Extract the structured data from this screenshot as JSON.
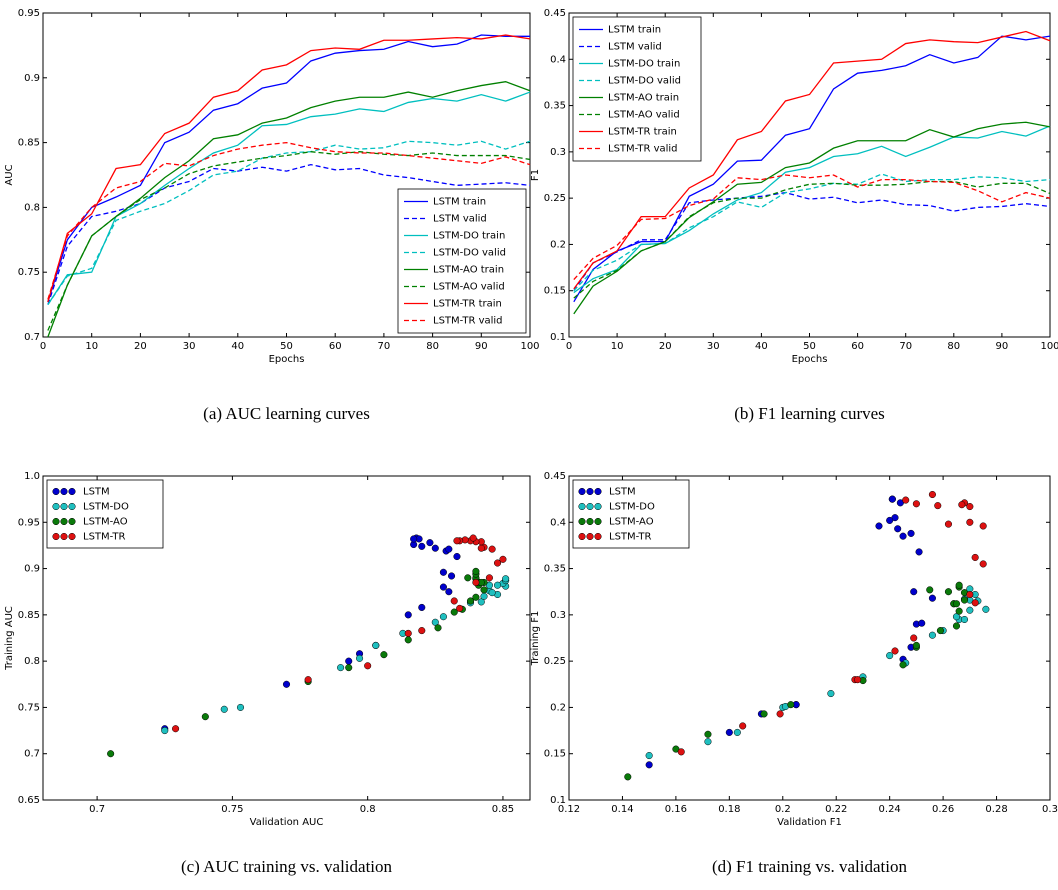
{
  "chart_data": [
    {
      "type": "line",
      "caption": "(a) AUC learning curves",
      "x_label": "Epochs",
      "y_label": "AUC",
      "x": [
        1,
        5,
        10,
        15,
        20,
        25,
        30,
        35,
        40,
        45,
        50,
        55,
        60,
        65,
        70,
        75,
        80,
        85,
        90,
        95,
        100
      ],
      "xlim": [
        0,
        100
      ],
      "xticks": [
        0,
        10,
        20,
        30,
        40,
        50,
        60,
        70,
        80,
        90,
        100
      ],
      "ylim": [
        0.7,
        0.95
      ],
      "yticks": [
        0.7,
        0.75,
        0.8,
        0.85,
        0.9,
        0.95
      ],
      "legend": "lower right",
      "series": [
        {
          "name": "LSTM train",
          "color": "#0000ff",
          "dashed": false,
          "values": [
            0.727,
            0.775,
            0.8,
            0.808,
            0.817,
            0.85,
            0.858,
            0.875,
            0.88,
            0.892,
            0.896,
            0.913,
            0.919,
            0.921,
            0.922,
            0.928,
            0.924,
            0.926,
            0.933,
            0.932,
            0.932
          ]
        },
        {
          "name": "LSTM valid",
          "color": "#0000ff",
          "dashed": true,
          "values": [
            0.725,
            0.77,
            0.793,
            0.797,
            0.803,
            0.815,
            0.82,
            0.83,
            0.828,
            0.831,
            0.828,
            0.833,
            0.829,
            0.83,
            0.825,
            0.823,
            0.82,
            0.817,
            0.818,
            0.819,
            0.817
          ]
        },
        {
          "name": "LSTM-DO train",
          "color": "#00bfbf",
          "dashed": false,
          "values": [
            0.725,
            0.748,
            0.75,
            0.793,
            0.803,
            0.817,
            0.83,
            0.842,
            0.848,
            0.863,
            0.864,
            0.87,
            0.872,
            0.876,
            0.874,
            0.881,
            0.884,
            0.882,
            0.887,
            0.882,
            0.889
          ]
        },
        {
          "name": "LSTM-DO valid",
          "color": "#00bfbf",
          "dashed": true,
          "values": [
            0.725,
            0.747,
            0.753,
            0.79,
            0.797,
            0.803,
            0.813,
            0.825,
            0.828,
            0.838,
            0.842,
            0.843,
            0.848,
            0.845,
            0.846,
            0.851,
            0.85,
            0.848,
            0.851,
            0.845,
            0.851
          ]
        },
        {
          "name": "LSTM-AO train",
          "color": "#008000",
          "dashed": false,
          "values": [
            0.7,
            0.74,
            0.778,
            0.793,
            0.807,
            0.823,
            0.836,
            0.853,
            0.856,
            0.865,
            0.869,
            0.877,
            0.882,
            0.885,
            0.885,
            0.889,
            0.885,
            0.89,
            0.894,
            0.897,
            0.89
          ]
        },
        {
          "name": "LSTM-AO valid",
          "color": "#008000",
          "dashed": true,
          "values": [
            0.705,
            0.74,
            0.778,
            0.793,
            0.806,
            0.815,
            0.826,
            0.832,
            0.835,
            0.838,
            0.84,
            0.843,
            0.841,
            0.843,
            0.841,
            0.84,
            0.842,
            0.84,
            0.84,
            0.84,
            0.837
          ]
        },
        {
          "name": "LSTM-TR train",
          "color": "#ff0000",
          "dashed": false,
          "values": [
            0.727,
            0.78,
            0.795,
            0.83,
            0.833,
            0.857,
            0.865,
            0.885,
            0.89,
            0.906,
            0.91,
            0.921,
            0.923,
            0.922,
            0.929,
            0.929,
            0.93,
            0.931,
            0.93,
            0.933,
            0.93
          ]
        },
        {
          "name": "LSTM-TR valid",
          "color": "#ff0000",
          "dashed": true,
          "values": [
            0.729,
            0.778,
            0.8,
            0.815,
            0.82,
            0.834,
            0.832,
            0.84,
            0.845,
            0.848,
            0.85,
            0.846,
            0.843,
            0.842,
            0.842,
            0.84,
            0.838,
            0.836,
            0.834,
            0.839,
            0.833
          ]
        }
      ]
    },
    {
      "type": "line",
      "caption": "(b) F1 learning curves",
      "x_label": "Epochs",
      "y_label": "F1",
      "x": [
        1,
        5,
        10,
        15,
        20,
        25,
        30,
        35,
        40,
        45,
        50,
        55,
        60,
        65,
        70,
        75,
        80,
        85,
        90,
        95,
        100
      ],
      "xlim": [
        0,
        100
      ],
      "xticks": [
        0,
        10,
        20,
        30,
        40,
        50,
        60,
        70,
        80,
        90,
        100
      ],
      "ylim": [
        0.1,
        0.45
      ],
      "yticks": [
        0.1,
        0.15,
        0.2,
        0.25,
        0.3,
        0.35,
        0.4,
        0.45
      ],
      "legend": "upper left",
      "series": [
        {
          "name": "LSTM train",
          "color": "#0000ff",
          "dashed": false,
          "values": [
            0.138,
            0.173,
            0.193,
            0.203,
            0.203,
            0.252,
            0.265,
            0.29,
            0.291,
            0.318,
            0.325,
            0.368,
            0.385,
            0.388,
            0.393,
            0.405,
            0.396,
            0.402,
            0.425,
            0.421,
            0.425
          ]
        },
        {
          "name": "LSTM valid",
          "color": "#0000ff",
          "dashed": true,
          "values": [
            0.15,
            0.18,
            0.192,
            0.205,
            0.205,
            0.245,
            0.248,
            0.25,
            0.252,
            0.256,
            0.249,
            0.251,
            0.245,
            0.248,
            0.243,
            0.242,
            0.236,
            0.24,
            0.241,
            0.244,
            0.241
          ]
        },
        {
          "name": "LSTM-DO train",
          "color": "#00bfbf",
          "dashed": false,
          "values": [
            0.148,
            0.163,
            0.173,
            0.2,
            0.201,
            0.215,
            0.233,
            0.248,
            0.256,
            0.278,
            0.283,
            0.295,
            0.298,
            0.306,
            0.295,
            0.305,
            0.316,
            0.315,
            0.322,
            0.317,
            0.328
          ]
        },
        {
          "name": "LSTM-DO valid",
          "color": "#00bfbf",
          "dashed": true,
          "values": [
            0.15,
            0.172,
            0.183,
            0.2,
            0.201,
            0.218,
            0.23,
            0.246,
            0.24,
            0.256,
            0.26,
            0.266,
            0.265,
            0.276,
            0.268,
            0.27,
            0.27,
            0.273,
            0.272,
            0.268,
            0.27
          ]
        },
        {
          "name": "LSTM-AO train",
          "color": "#008000",
          "dashed": false,
          "values": [
            0.125,
            0.155,
            0.171,
            0.193,
            0.203,
            0.229,
            0.246,
            0.265,
            0.267,
            0.283,
            0.288,
            0.304,
            0.312,
            0.312,
            0.312,
            0.324,
            0.316,
            0.325,
            0.33,
            0.332,
            0.327
          ]
        },
        {
          "name": "LSTM-AO valid",
          "color": "#008000",
          "dashed": true,
          "values": [
            0.142,
            0.16,
            0.172,
            0.193,
            0.203,
            0.23,
            0.245,
            0.25,
            0.25,
            0.259,
            0.265,
            0.266,
            0.264,
            0.264,
            0.265,
            0.268,
            0.268,
            0.262,
            0.266,
            0.266,
            0.255
          ]
        },
        {
          "name": "LSTM-TR train",
          "color": "#ff0000",
          "dashed": false,
          "values": [
            0.152,
            0.18,
            0.193,
            0.23,
            0.23,
            0.261,
            0.275,
            0.313,
            0.322,
            0.355,
            0.362,
            0.396,
            0.398,
            0.4,
            0.417,
            0.421,
            0.419,
            0.418,
            0.424,
            0.43,
            0.42
          ]
        },
        {
          "name": "LSTM-TR valid",
          "color": "#ff0000",
          "dashed": true,
          "values": [
            0.162,
            0.185,
            0.199,
            0.227,
            0.228,
            0.242,
            0.249,
            0.272,
            0.27,
            0.275,
            0.272,
            0.275,
            0.262,
            0.27,
            0.27,
            0.268,
            0.267,
            0.258,
            0.246,
            0.256,
            0.25
          ]
        }
      ]
    },
    {
      "type": "scatter",
      "caption": "(c) AUC training vs. validation",
      "x_label": "Validation AUC",
      "y_label": "Training AUC",
      "xlim": [
        0.68,
        0.86
      ],
      "xticks": [
        0.7,
        0.75,
        0.8,
        0.85
      ],
      "ylim": [
        0.65,
        1.0
      ],
      "yticks": [
        0.65,
        0.7,
        0.75,
        0.8,
        0.85,
        0.9,
        0.95,
        {
          "value": 1.0,
          "label": "1.0"
        }
      ],
      "legend": "upper left",
      "series": [
        {
          "name": "LSTM",
          "color": "#0000cc",
          "x": [
            0.725,
            0.77,
            0.793,
            0.797,
            0.803,
            0.815,
            0.82,
            0.83,
            0.828,
            0.831,
            0.828,
            0.833,
            0.829,
            0.83,
            0.825,
            0.823,
            0.82,
            0.817,
            0.818,
            0.819,
            0.817
          ],
          "y": [
            0.727,
            0.775,
            0.8,
            0.808,
            0.817,
            0.85,
            0.858,
            0.875,
            0.88,
            0.892,
            0.896,
            0.913,
            0.919,
            0.921,
            0.922,
            0.928,
            0.924,
            0.926,
            0.933,
            0.932,
            0.932
          ]
        },
        {
          "name": "LSTM-DO",
          "color": "#1fbfbf",
          "x": [
            0.725,
            0.747,
            0.753,
            0.79,
            0.797,
            0.803,
            0.813,
            0.825,
            0.828,
            0.838,
            0.842,
            0.843,
            0.848,
            0.845,
            0.846,
            0.851,
            0.85,
            0.848,
            0.851,
            0.845,
            0.851
          ],
          "y": [
            0.725,
            0.748,
            0.75,
            0.793,
            0.803,
            0.817,
            0.83,
            0.842,
            0.848,
            0.863,
            0.864,
            0.87,
            0.872,
            0.876,
            0.874,
            0.881,
            0.884,
            0.882,
            0.887,
            0.882,
            0.889
          ]
        },
        {
          "name": "LSTM-AO",
          "color": "#0a7a0a",
          "x": [
            0.705,
            0.74,
            0.778,
            0.793,
            0.806,
            0.815,
            0.826,
            0.832,
            0.835,
            0.838,
            0.84,
            0.843,
            0.841,
            0.843,
            0.841,
            0.84,
            0.842,
            0.84,
            0.84,
            0.84,
            0.837
          ],
          "y": [
            0.7,
            0.74,
            0.778,
            0.793,
            0.807,
            0.823,
            0.836,
            0.853,
            0.856,
            0.865,
            0.869,
            0.877,
            0.882,
            0.885,
            0.885,
            0.889,
            0.885,
            0.89,
            0.894,
            0.897,
            0.89
          ]
        },
        {
          "name": "LSTM-TR",
          "color": "#dd1111",
          "x": [
            0.729,
            0.778,
            0.8,
            0.815,
            0.82,
            0.834,
            0.832,
            0.84,
            0.845,
            0.848,
            0.85,
            0.846,
            0.843,
            0.842,
            0.842,
            0.84,
            0.838,
            0.836,
            0.834,
            0.839,
            0.833
          ],
          "y": [
            0.727,
            0.78,
            0.795,
            0.83,
            0.833,
            0.857,
            0.865,
            0.885,
            0.89,
            0.906,
            0.91,
            0.921,
            0.923,
            0.922,
            0.929,
            0.929,
            0.93,
            0.931,
            0.93,
            0.933,
            0.93
          ]
        }
      ]
    },
    {
      "type": "scatter",
      "caption": "(d) F1 training vs. validation",
      "x_label": "Validation F1",
      "y_label": "Training F1",
      "xlim": [
        0.12,
        0.3
      ],
      "xticks": [
        0.12,
        0.14,
        0.16,
        0.18,
        0.2,
        0.22,
        0.24,
        0.26,
        0.28,
        0.3
      ],
      "ylim": [
        0.1,
        0.45
      ],
      "yticks": [
        0.1,
        0.15,
        0.2,
        0.25,
        0.3,
        0.35,
        0.4,
        0.45
      ],
      "legend": "upper left",
      "series": [
        {
          "name": "LSTM",
          "color": "#0000cc",
          "x": [
            0.15,
            0.18,
            0.192,
            0.205,
            0.205,
            0.245,
            0.248,
            0.25,
            0.252,
            0.256,
            0.249,
            0.251,
            0.245,
            0.248,
            0.243,
            0.242,
            0.236,
            0.24,
            0.241,
            0.244,
            0.241
          ],
          "y": [
            0.138,
            0.173,
            0.193,
            0.203,
            0.203,
            0.252,
            0.265,
            0.29,
            0.291,
            0.318,
            0.325,
            0.368,
            0.385,
            0.388,
            0.393,
            0.405,
            0.396,
            0.402,
            0.425,
            0.421,
            0.425
          ]
        },
        {
          "name": "LSTM-DO",
          "color": "#1fbfbf",
          "x": [
            0.15,
            0.172,
            0.183,
            0.2,
            0.201,
            0.218,
            0.23,
            0.246,
            0.24,
            0.256,
            0.26,
            0.266,
            0.265,
            0.276,
            0.268,
            0.27,
            0.27,
            0.273,
            0.272,
            0.268,
            0.27
          ],
          "y": [
            0.148,
            0.163,
            0.173,
            0.2,
            0.201,
            0.215,
            0.233,
            0.248,
            0.256,
            0.278,
            0.283,
            0.295,
            0.298,
            0.306,
            0.295,
            0.305,
            0.316,
            0.315,
            0.322,
            0.317,
            0.328
          ]
        },
        {
          "name": "LSTM-AO",
          "color": "#0a7a0a",
          "x": [
            0.142,
            0.16,
            0.172,
            0.193,
            0.203,
            0.23,
            0.245,
            0.25,
            0.25,
            0.259,
            0.265,
            0.266,
            0.264,
            0.264,
            0.265,
            0.268,
            0.268,
            0.262,
            0.266,
            0.266,
            0.255
          ],
          "y": [
            0.125,
            0.155,
            0.171,
            0.193,
            0.203,
            0.229,
            0.246,
            0.265,
            0.267,
            0.283,
            0.288,
            0.304,
            0.312,
            0.312,
            0.312,
            0.324,
            0.316,
            0.325,
            0.33,
            0.332,
            0.327
          ]
        },
        {
          "name": "LSTM-TR",
          "color": "#dd1111",
          "x": [
            0.162,
            0.185,
            0.199,
            0.227,
            0.228,
            0.242,
            0.249,
            0.272,
            0.27,
            0.275,
            0.272,
            0.275,
            0.262,
            0.27,
            0.27,
            0.268,
            0.267,
            0.258,
            0.246,
            0.256,
            0.25
          ],
          "y": [
            0.152,
            0.18,
            0.193,
            0.23,
            0.23,
            0.261,
            0.275,
            0.313,
            0.322,
            0.355,
            0.362,
            0.396,
            0.398,
            0.4,
            0.417,
            0.421,
            0.419,
            0.418,
            0.424,
            0.43,
            0.42
          ]
        }
      ]
    }
  ]
}
